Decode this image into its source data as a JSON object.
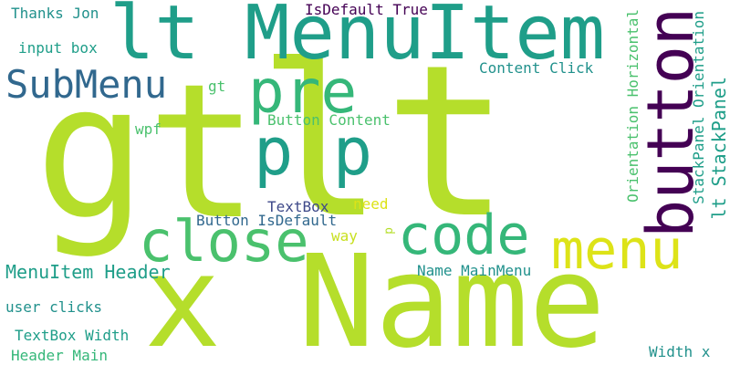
{
  "colors": {
    "background": "#ffffff",
    "lime": "#b5de2b",
    "yellow_green": "#c8e020",
    "teal": "#1f9e89",
    "teal_dark": "#21918c",
    "steel_blue": "#31688e",
    "green": "#35b779",
    "green_light": "#4ac16d",
    "purple": "#440154",
    "yellow": "#dde318",
    "indigo": "#3e4989"
  },
  "words": [
    {
      "id": "gt-large",
      "text": "gt"
    },
    {
      "id": "lt-large",
      "text": "lt"
    },
    {
      "id": "name",
      "text": "x Name"
    },
    {
      "id": "lt-menuitem",
      "text": "lt MenuItem"
    },
    {
      "id": "pre",
      "text": "pre"
    },
    {
      "id": "p-p",
      "text": "p p"
    },
    {
      "id": "button",
      "text": "button"
    },
    {
      "id": "submenu",
      "text": "SubMenu"
    },
    {
      "id": "close",
      "text": "close"
    },
    {
      "id": "code",
      "text": "code"
    },
    {
      "id": "menu",
      "text": "menu"
    },
    {
      "id": "lt-stackpanel",
      "text": "lt StackPanel"
    },
    {
      "id": "stackpanel-orientation",
      "text": "StackPanel Orientation"
    },
    {
      "id": "orientation-horizontal",
      "text": "Orientation Horizontal"
    },
    {
      "id": "thanks-jon",
      "text": "Thanks Jon"
    },
    {
      "id": "isdefault-true",
      "text": "IsDefault True"
    },
    {
      "id": "input-box",
      "text": "input box"
    },
    {
      "id": "content-click",
      "text": "Content Click"
    },
    {
      "id": "gt-small",
      "text": "gt"
    },
    {
      "id": "button-content",
      "text": "Button Content"
    },
    {
      "id": "wpf",
      "text": "wpf"
    },
    {
      "id": "textbox",
      "text": "TextBox"
    },
    {
      "id": "need",
      "text": "need"
    },
    {
      "id": "button-isdefault",
      "text": "Button IsDefault"
    },
    {
      "id": "way",
      "text": "way"
    },
    {
      "id": "p-small",
      "text": "p"
    },
    {
      "id": "menuitem-header",
      "text": "MenuItem Header"
    },
    {
      "id": "name-mainmenu",
      "text": "Name MainMenu"
    },
    {
      "id": "user-clicks",
      "text": "user clicks"
    },
    {
      "id": "textbox-width",
      "text": "TextBox Width"
    },
    {
      "id": "header-main",
      "text": "Header Main"
    },
    {
      "id": "width-x",
      "text": "Width x"
    }
  ]
}
